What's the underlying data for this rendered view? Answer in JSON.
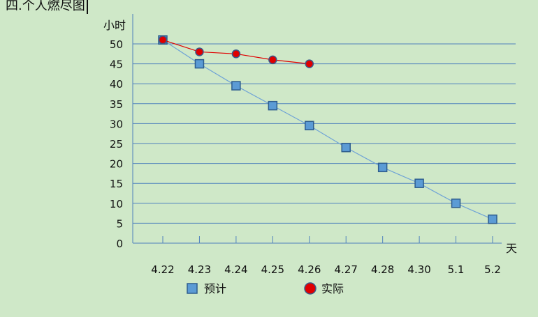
{
  "document": {
    "heading": "四.个人燃尽图"
  },
  "chart_data": {
    "type": "line",
    "categories": [
      "4.22",
      "4.23",
      "4.24",
      "4.25",
      "4.26",
      "4.27",
      "4.28",
      "4.30",
      "5.1",
      "5.2"
    ],
    "ylabel": "小时",
    "xlabel": "天",
    "ylim": [
      0,
      50
    ],
    "yticks": [
      0,
      5,
      10,
      15,
      20,
      25,
      30,
      35,
      40,
      45,
      50
    ],
    "grid": true,
    "legend_position": "bottom",
    "series": [
      {
        "name": "预计",
        "color": "#5b9bd5",
        "marker": "square",
        "values": [
          51,
          45,
          39.5,
          34.5,
          29.5,
          24,
          19,
          15,
          10,
          6
        ]
      },
      {
        "name": "实际",
        "color": "#e00000",
        "marker": "circle",
        "values": [
          51,
          48,
          47.5,
          46,
          45,
          null,
          null,
          null,
          null,
          null
        ]
      }
    ]
  }
}
